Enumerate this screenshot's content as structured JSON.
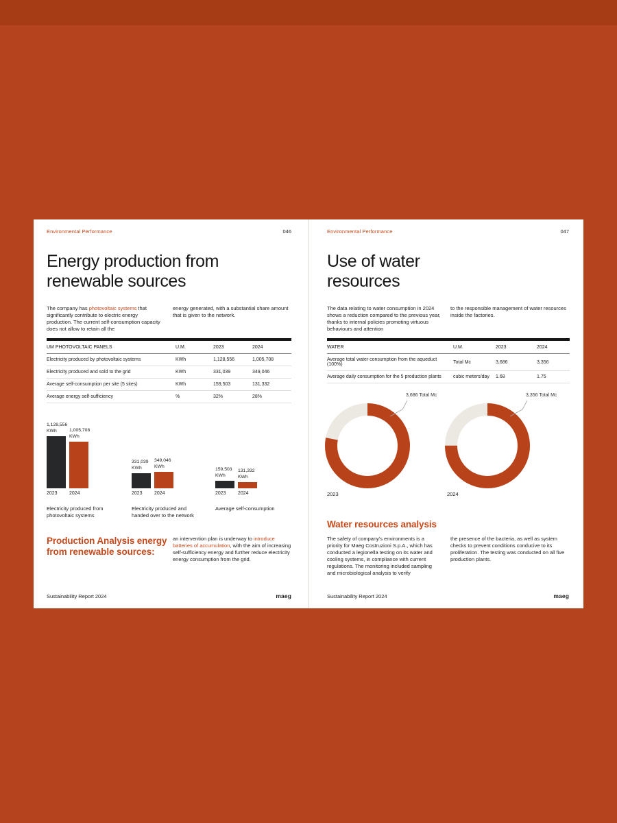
{
  "canvas": {
    "background_color": "#b5431d",
    "top_strip_color": "#a63c15",
    "accent_color": "#c5491b",
    "dark_bar_color": "#26282a",
    "orange_shape_color": "#b8431a",
    "ring_rest_color": "#ece8e2"
  },
  "left_page": {
    "eyebrow": "Environmental Performance",
    "page_number": "046",
    "title_line1": "Energy production from",
    "title_line2": "renewable sources",
    "intro": {
      "col1_prefix": "The company has ",
      "col1_highlight": "photovoltaic systems",
      "col1_suffix": " that significantly contribute to electric energy production. The current self-consumption capacity does not allow to retain all the",
      "col2": "energy generated, with a substantial share amount that is given to the network."
    },
    "table": {
      "headers": [
        "UM PHOTOVOLTAIC PANELS",
        "U.M.",
        "2023",
        "2024"
      ],
      "rows": [
        [
          "Electricity produced by photovoltaic systems",
          "KWh",
          "1,128,556",
          "1,005,708"
        ],
        [
          "Electricity produced and sold to the grid",
          "KWh",
          "331,039",
          "349,046"
        ],
        [
          "Average self-consumption per site (5 sites)",
          "KWh",
          "159,503",
          "131,332"
        ],
        [
          "Average energy self-sufficiency",
          "%",
          "32%",
          "28%"
        ]
      ]
    },
    "analysis": {
      "heading": "Production Analysis energy from renewable sources:",
      "text_prefix": "an intervention plan is underway to ",
      "text_highlight": "introduce batteries of accumulation",
      "text_suffix": ", with the aim of increasing self-sufficiency energy and further reduce electricity energy consumption from the grid."
    },
    "footer": {
      "left": "Sustainability Report 2024",
      "right": "maeg"
    }
  },
  "right_page": {
    "eyebrow": "Environmental Performance",
    "page_number": "047",
    "title_line1": "Use of water",
    "title_line2": "resources",
    "intro": {
      "col1": "The data relating to water consumption in 2024 shows a reduction compared to the previous year, thanks to internal policies promoting virtuous behaviours and attention",
      "col2": "to the responsible management of water resources inside the factories."
    },
    "table": {
      "headers": [
        "WATER",
        "U.M.",
        "2023",
        "2024"
      ],
      "rows": [
        [
          "Average total water consumption from the aqueduct (100%)",
          "Total Mc",
          "3,686",
          "3,356"
        ],
        [
          "Average daily consumption for the 5 production plants",
          "cubic meters/day",
          "1.68",
          "1.75"
        ]
      ]
    },
    "analysis": {
      "heading": "Water resources analysis",
      "col1": "The safety of company's environments is a priority for Maeg Costruzioni S.p.A., which has conducted a legionella testing on its water and cooling systems, in compliance with current regulations. The monitoring included sampling and microbiological analysis to verify",
      "col2": "the presence of the bacteria, as well as system checks to prevent conditions conducive to its proliferation. The testing was conducted on all five production plants."
    },
    "footer": {
      "left": "Sustainability Report 2024",
      "right": "maeg"
    }
  },
  "chart_data": [
    {
      "type": "bar",
      "title": "Electricity produced from photovoltaic systems",
      "categories": [
        "2023",
        "2024"
      ],
      "values": [
        1128556,
        1005708
      ],
      "value_labels": [
        "1,128,556",
        "1,005,708"
      ],
      "unit": "KWh",
      "ylabel": "KWh",
      "colors": [
        "#26282a",
        "#b8431a"
      ]
    },
    {
      "type": "bar",
      "title": "Electricity produced and handed over to the network",
      "categories": [
        "2023",
        "2024"
      ],
      "values": [
        331039,
        349046
      ],
      "value_labels": [
        "331,039",
        "349,046"
      ],
      "unit": "KWh",
      "ylabel": "KWh",
      "colors": [
        "#26282a",
        "#b8431a"
      ]
    },
    {
      "type": "bar",
      "title": "Average self-consumption",
      "categories": [
        "2023",
        "2024"
      ],
      "values": [
        159503,
        131332
      ],
      "value_labels": [
        "159,503",
        "131,332"
      ],
      "unit": "KWh",
      "ylabel": "KWh",
      "colors": [
        "#26282a",
        "#b8431a"
      ]
    },
    {
      "type": "donut",
      "year": "2023",
      "callout": "3,686 Total Mc",
      "total_mc": 3686,
      "filled_fraction": 0.78,
      "ring_color": "#b8431a",
      "rest_color": "#ece8e2",
      "legend_position": "top-right-callout"
    },
    {
      "type": "donut",
      "year": "2024",
      "callout": "3,356 Total Mc",
      "total_mc": 3356,
      "filled_fraction": 0.75,
      "ring_color": "#b8431a",
      "rest_color": "#ece8e2",
      "legend_position": "top-right-callout"
    }
  ]
}
